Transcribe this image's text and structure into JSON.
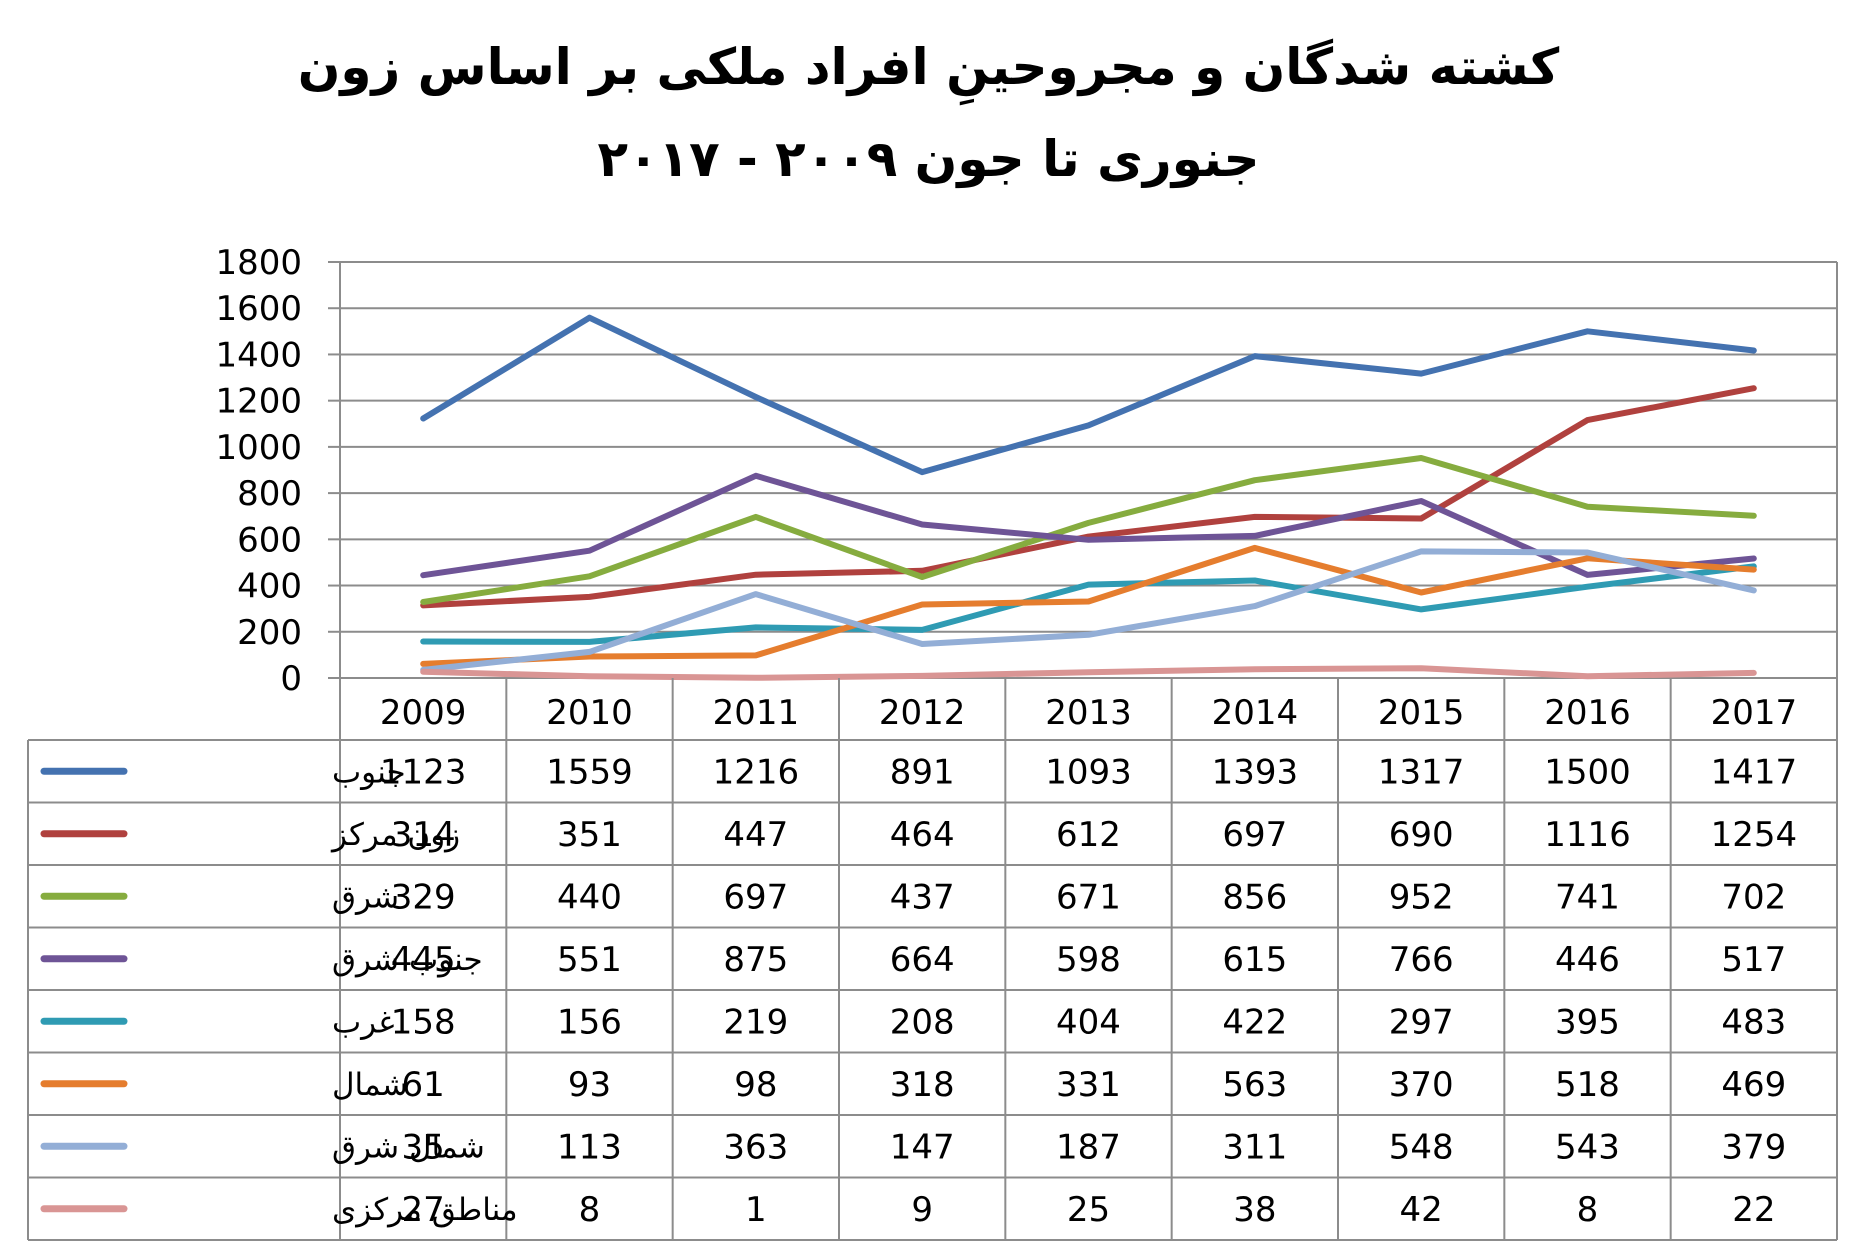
{
  "title_line1": "کشته شدگان و مجروحینِ افراد ملکی بر اساس زون",
  "title_line2": "جنوری تا جون ۲۰۰۹ - ۲۰۱۷",
  "chart_data": {
    "type": "line",
    "x": [
      "2009",
      "2010",
      "2011",
      "2012",
      "2013",
      "2014",
      "2015",
      "2016",
      "2017"
    ],
    "ylim": [
      0,
      1800
    ],
    "yticks": [
      0,
      200,
      400,
      600,
      800,
      1000,
      1200,
      1400,
      1600,
      1800
    ],
    "grid": true,
    "legend": "data-table-below",
    "series": [
      {
        "name": "جنوب",
        "color": "#4472b0",
        "values": [
          1123,
          1559,
          1216,
          891,
          1093,
          1393,
          1317,
          1500,
          1417
        ]
      },
      {
        "name": "زون مرکز",
        "color": "#b0413e",
        "values": [
          314,
          351,
          447,
          464,
          612,
          697,
          690,
          1116,
          1254
        ]
      },
      {
        "name": "شرق",
        "color": "#86ac3f",
        "values": [
          329,
          440,
          697,
          437,
          671,
          856,
          952,
          741,
          702
        ]
      },
      {
        "name": "جنوب شرق",
        "color": "#6e5496",
        "values": [
          445,
          551,
          875,
          664,
          598,
          615,
          766,
          446,
          517
        ]
      },
      {
        "name": "غرب",
        "color": "#2f9bb3",
        "values": [
          158,
          156,
          219,
          208,
          404,
          422,
          297,
          395,
          483
        ]
      },
      {
        "name": "شمال",
        "color": "#e57d2e",
        "values": [
          61,
          93,
          98,
          318,
          331,
          563,
          370,
          518,
          469
        ]
      },
      {
        "name": "شمال شرق",
        "color": "#93aed6",
        "values": [
          35,
          113,
          363,
          147,
          187,
          311,
          548,
          543,
          379
        ]
      },
      {
        "name": "مناطق مرکزی",
        "color": "#d99594",
        "values": [
          27,
          8,
          1,
          9,
          25,
          38,
          42,
          8,
          22
        ]
      }
    ]
  }
}
